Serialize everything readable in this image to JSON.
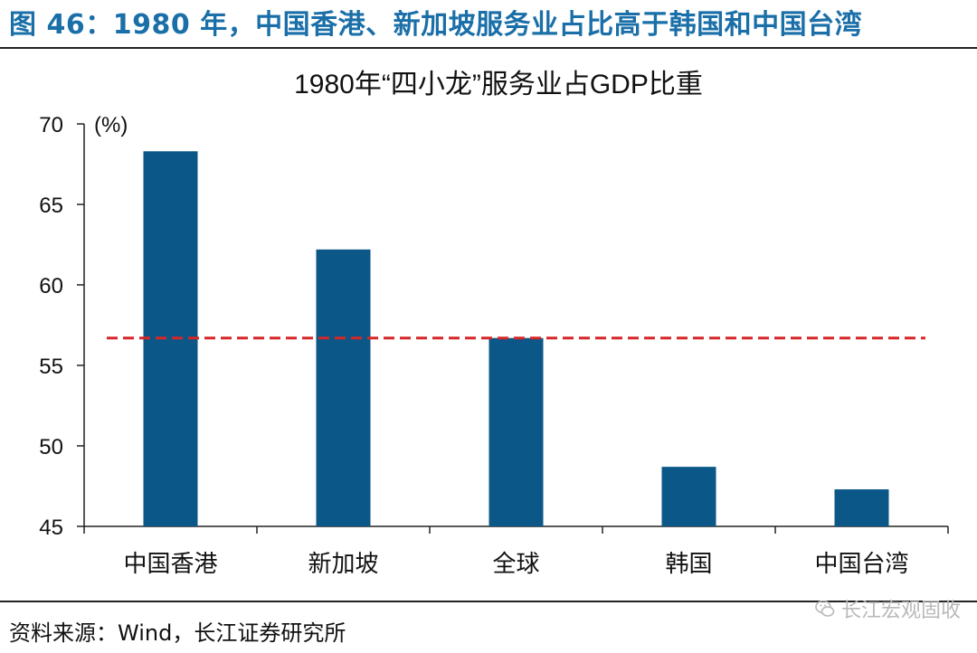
{
  "figure_title": "图 46：1980 年，中国香港、新加坡服务业占比高于韩国和中国台湾",
  "source": "资料来源：Wind，长江证券研究所",
  "watermark": "长江宏观固收",
  "colors": {
    "bar": "#0b5788",
    "reference_line": "#d62728",
    "title": "#1a6fa8"
  },
  "chart_data": {
    "type": "bar",
    "title": "1980年“四小龙”服务业占GDP比重",
    "unit_label": "(%)",
    "categories": [
      "中国香港",
      "新加坡",
      "全球",
      "韩国",
      "中国台湾"
    ],
    "values": [
      68.3,
      62.2,
      56.7,
      48.7,
      47.3
    ],
    "ylim": [
      45,
      70
    ],
    "yticks": [
      45,
      50,
      55,
      60,
      65,
      70
    ],
    "reference_line": {
      "value": 56.7,
      "style": "dashed"
    },
    "grid": false
  }
}
